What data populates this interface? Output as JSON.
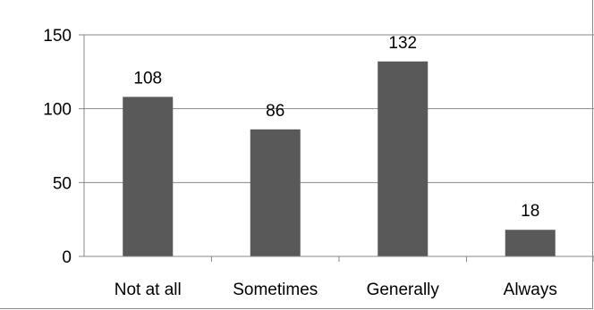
{
  "chart_data": {
    "type": "bar",
    "title": "",
    "xlabel": "",
    "ylabel": "",
    "categories": [
      "Not at all",
      "Sometimes",
      "Generally",
      "Always"
    ],
    "values": [
      108,
      86,
      132,
      18
    ],
    "data_labels": [
      "108",
      "86",
      "132",
      "18"
    ],
    "ylim": [
      0,
      150
    ],
    "yticks": [
      0,
      50,
      100,
      150
    ],
    "ytick_labels": [
      "0",
      "50",
      "100",
      "150"
    ],
    "grid": true,
    "legend": "none",
    "colors": {
      "bar": "#595959",
      "grid": "#888888",
      "axis": "#888888",
      "text": "#000000"
    }
  }
}
